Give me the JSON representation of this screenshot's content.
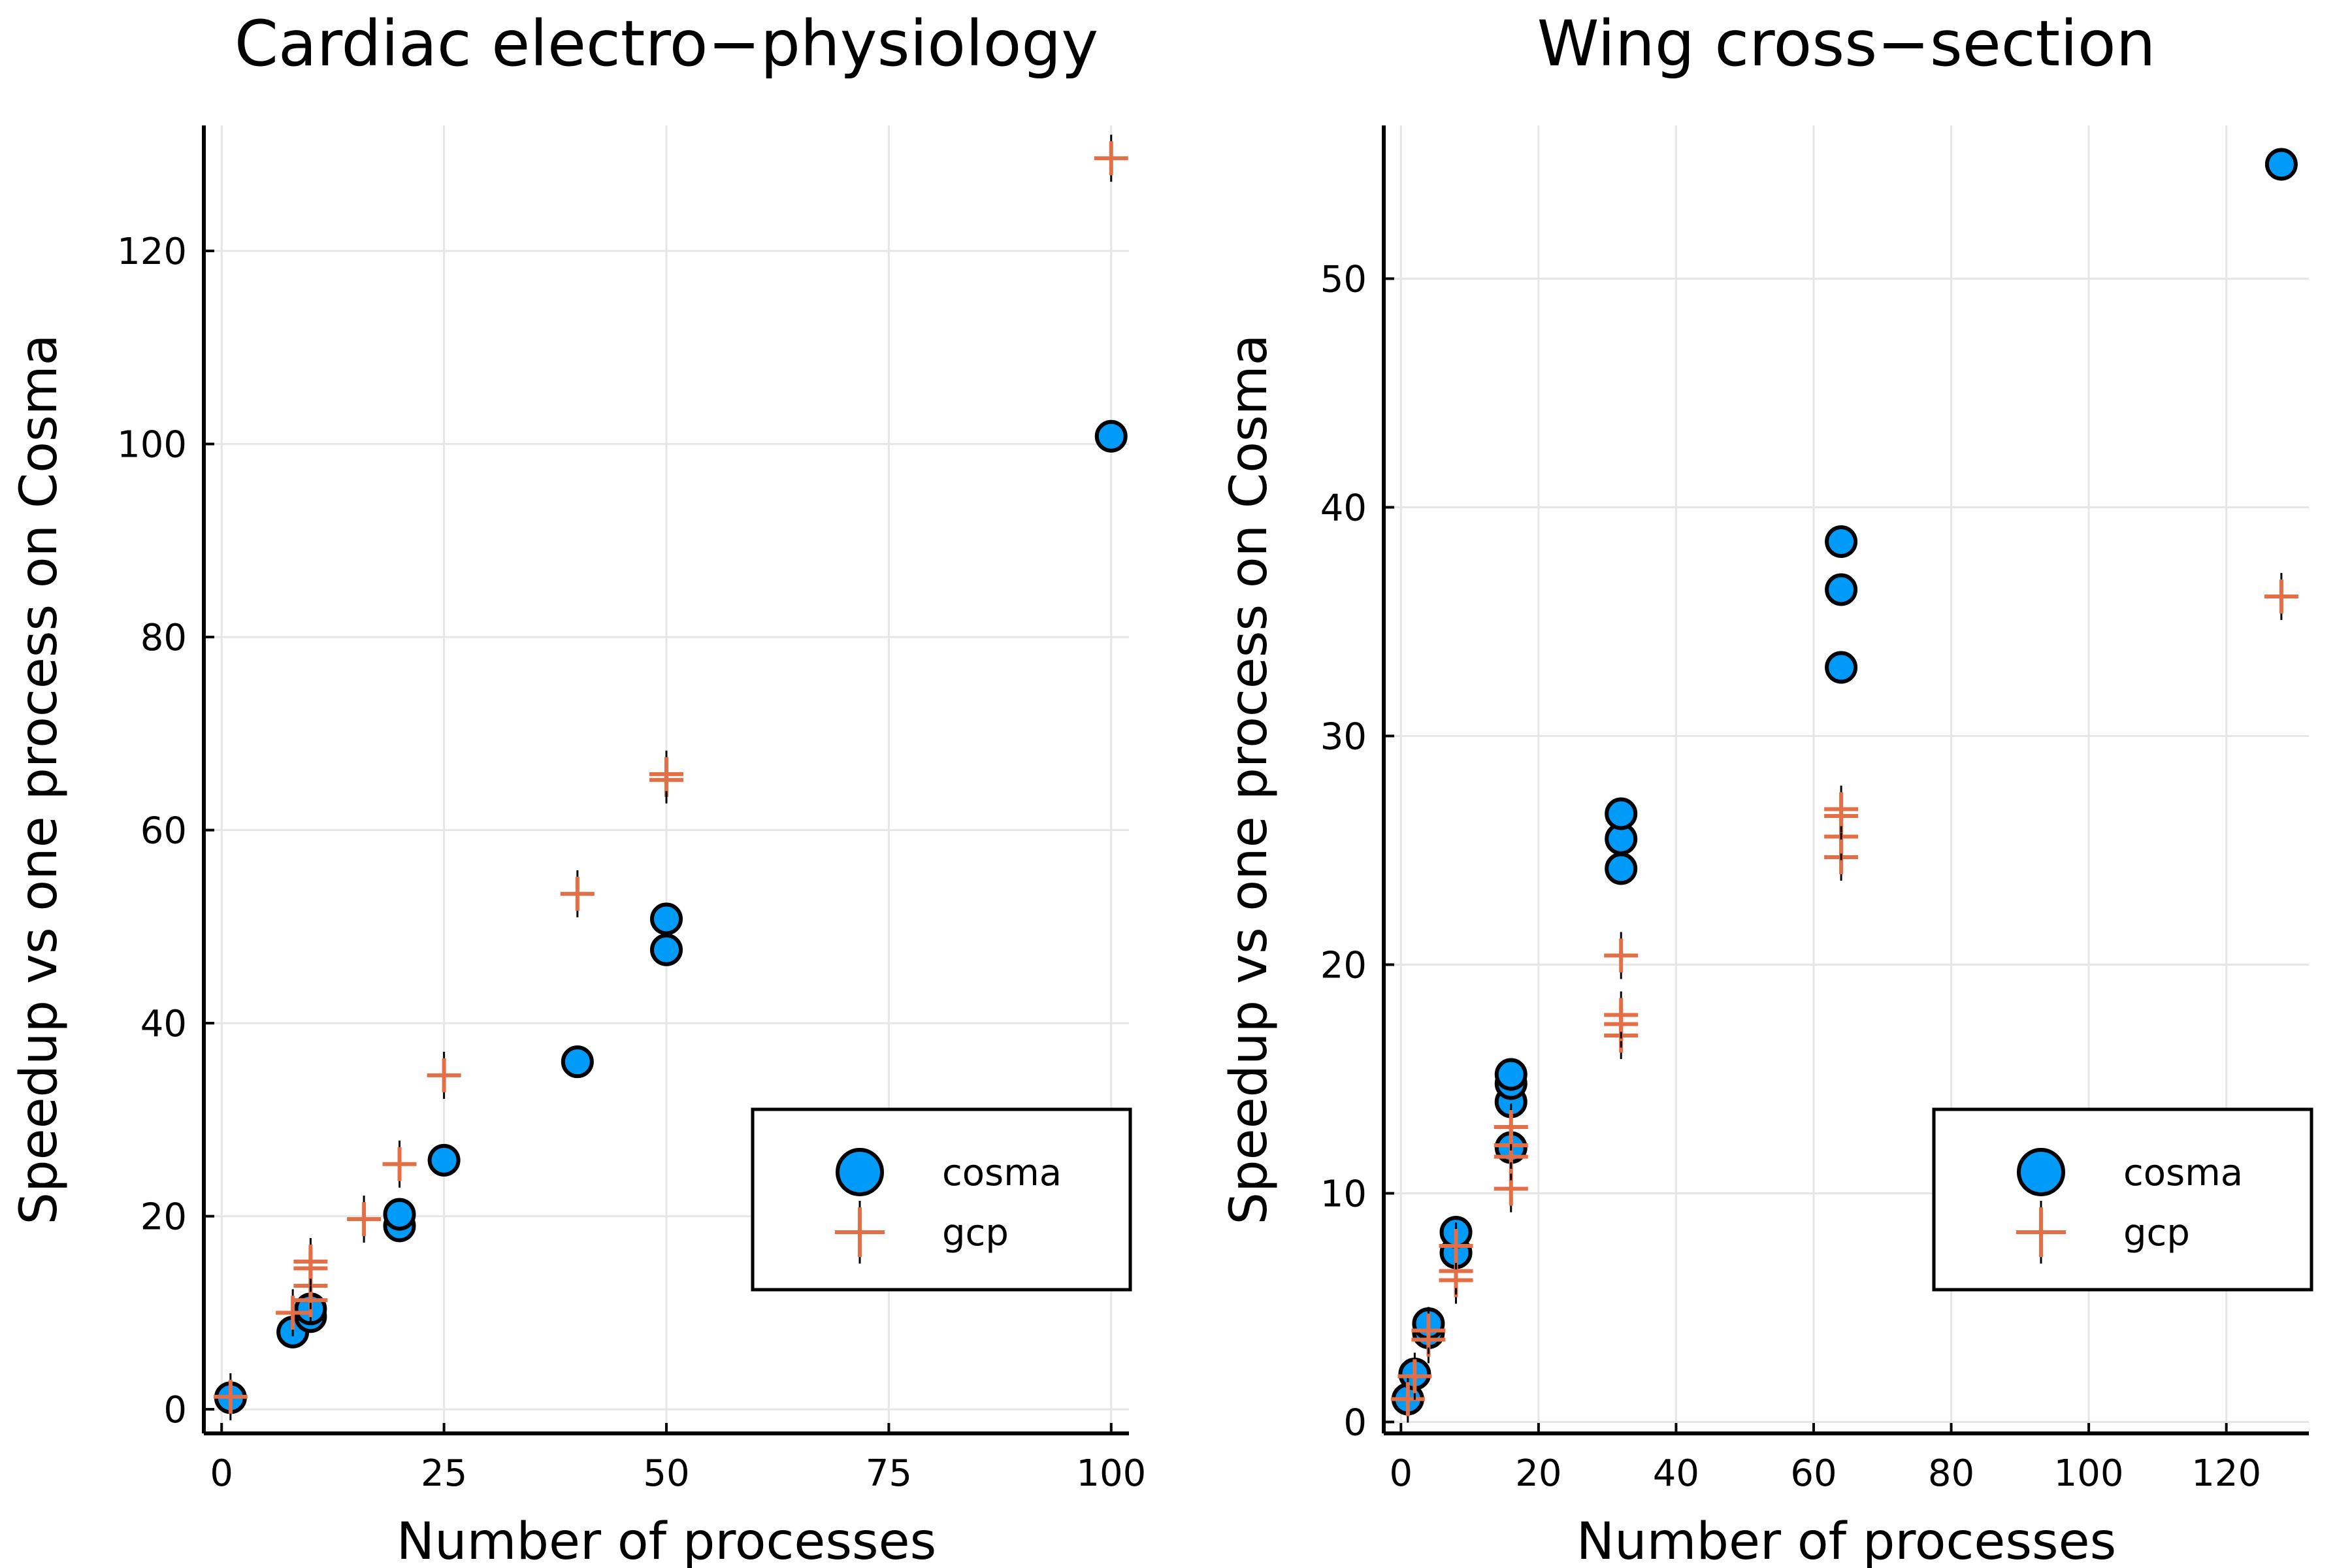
{
  "chart_data": [
    {
      "type": "scatter",
      "title": "Cardiac electro−physiology",
      "xlabel": "Number of processes",
      "ylabel": "Speedup vs one process on Cosma",
      "xlim": [
        -2,
        102
      ],
      "ylim": [
        -2.5,
        133
      ],
      "xticks": [
        0,
        25,
        50,
        75,
        100
      ],
      "yticks": [
        0,
        20,
        40,
        60,
        80,
        100,
        120
      ],
      "grid": true,
      "legend_position": "bottom-right",
      "series": [
        {
          "name": "cosma",
          "marker": "circle",
          "color": "#009af9",
          "points": [
            [
              1,
              1.2
            ],
            [
              8,
              8.0
            ],
            [
              10,
              9.6
            ],
            [
              10,
              10.4
            ],
            [
              20,
              19.0
            ],
            [
              20,
              20.2
            ],
            [
              25,
              25.8
            ],
            [
              40,
              36.0
            ],
            [
              50,
              47.6
            ],
            [
              50,
              50.8
            ],
            [
              100,
              100.8
            ]
          ]
        },
        {
          "name": "gcp",
          "marker": "cross",
          "color": "#e26f46",
          "points": [
            [
              1,
              1.3
            ],
            [
              8,
              10.0
            ],
            [
              10,
              11.3
            ],
            [
              10,
              12.8
            ],
            [
              10,
              14.6
            ],
            [
              10,
              15.3
            ],
            [
              16,
              19.7
            ],
            [
              20,
              25.4
            ],
            [
              25,
              34.6
            ],
            [
              40,
              53.4
            ],
            [
              50,
              65.2
            ],
            [
              50,
              65.8
            ],
            [
              100,
              129.6
            ]
          ]
        }
      ]
    },
    {
      "type": "scatter",
      "title": "Wing cross−section",
      "xlabel": "Number of processes",
      "ylabel": "Speedup vs one process on Cosma",
      "xlim": [
        -2.5,
        132
      ],
      "ylim": [
        -0.5,
        56.7
      ],
      "xticks": [
        0,
        20,
        40,
        60,
        80,
        100,
        120
      ],
      "yticks": [
        0,
        10,
        20,
        30,
        40,
        50
      ],
      "grid": true,
      "legend_position": "bottom-right",
      "series": [
        {
          "name": "cosma",
          "marker": "circle",
          "color": "#009af9",
          "points": [
            [
              1,
              1.0
            ],
            [
              2,
              2.1
            ],
            [
              4,
              3.9
            ],
            [
              4,
              4.3
            ],
            [
              8,
              7.4
            ],
            [
              8,
              8.3
            ],
            [
              16,
              12.0
            ],
            [
              16,
              14.0
            ],
            [
              16,
              14.8
            ],
            [
              16,
              15.2
            ],
            [
              32,
              24.2
            ],
            [
              32,
              25.5
            ],
            [
              32,
              26.6
            ],
            [
              64,
              33.0
            ],
            [
              64,
              36.4
            ],
            [
              64,
              38.5
            ],
            [
              128,
              55.0
            ]
          ]
        },
        {
          "name": "gcp",
          "marker": "cross",
          "color": "#e26f46",
          "points": [
            [
              1,
              1.0
            ],
            [
              2,
              2.0
            ],
            [
              4,
              3.6
            ],
            [
              4,
              4.0
            ],
            [
              8,
              6.2
            ],
            [
              8,
              6.6
            ],
            [
              8,
              7.7
            ],
            [
              16,
              10.2
            ],
            [
              16,
              11.6
            ],
            [
              16,
              12.1
            ],
            [
              16,
              12.9
            ],
            [
              32,
              16.9
            ],
            [
              32,
              17.4
            ],
            [
              32,
              17.8
            ],
            [
              32,
              20.4
            ],
            [
              64,
              24.7
            ],
            [
              64,
              25.6
            ],
            [
              64,
              26.5
            ],
            [
              64,
              26.8
            ],
            [
              128,
              36.1
            ]
          ]
        }
      ]
    }
  ]
}
